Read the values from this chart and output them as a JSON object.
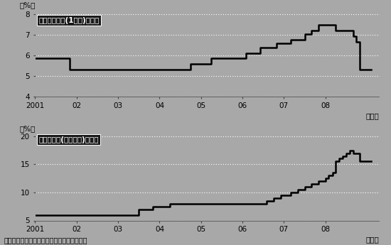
{
  "chart1_title": "貸出基準金利(1年物)の推移",
  "chart2_title": "預金準備率(大手銀行)の推移",
  "footnote": "（出所）中国人民銀行データを基に筆者作成",
  "chart1_ylabel": "（%）",
  "chart2_ylabel": "（%）",
  "chart1_ylim": [
    4,
    8.2
  ],
  "chart2_ylim": [
    5,
    20.5
  ],
  "chart1_yticks": [
    4,
    5,
    6,
    7,
    8
  ],
  "chart2_yticks": [
    5,
    10,
    15,
    20
  ],
  "xlim": [
    2001,
    2009.3
  ],
  "xtick_positions": [
    2001,
    2002,
    2003,
    2004,
    2005,
    2006,
    2007,
    2008
  ],
  "xtick_labels": [
    "2001",
    "02",
    "03",
    "04",
    "05",
    "06",
    "07",
    "08"
  ],
  "xlabel_end": "（年）",
  "bg_color": "#a8a8a8",
  "line_color": "#000000",
  "line_width": 1.8,
  "title_box_color": "#1a1a1a",
  "chart1_data_x": [
    2001.0,
    2001.83,
    2001.83,
    2002.17,
    2002.17,
    2004.75,
    2004.75,
    2005.25,
    2005.25,
    2006.08,
    2006.08,
    2006.42,
    2006.42,
    2006.83,
    2006.83,
    2007.17,
    2007.17,
    2007.5,
    2007.5,
    2007.67,
    2007.67,
    2007.83,
    2007.83,
    2008.0,
    2008.0,
    2008.25,
    2008.25,
    2008.67,
    2008.67,
    2008.75,
    2008.75,
    2008.83,
    2008.83,
    2009.1
  ],
  "chart1_data_y": [
    5.85,
    5.85,
    5.31,
    5.31,
    5.31,
    5.31,
    5.58,
    5.58,
    5.85,
    5.85,
    6.12,
    6.12,
    6.39,
    6.39,
    6.57,
    6.57,
    6.75,
    6.75,
    7.02,
    7.02,
    7.2,
    7.2,
    7.47,
    7.47,
    7.47,
    7.47,
    7.2,
    7.2,
    6.93,
    6.93,
    6.66,
    6.66,
    5.31,
    5.31
  ],
  "chart2_data_x": [
    2001.0,
    2003.5,
    2003.5,
    2003.83,
    2003.83,
    2004.25,
    2004.25,
    2004.5,
    2004.5,
    2006.58,
    2006.58,
    2006.75,
    2006.75,
    2006.92,
    2006.92,
    2007.17,
    2007.17,
    2007.33,
    2007.33,
    2007.5,
    2007.5,
    2007.67,
    2007.67,
    2007.83,
    2007.83,
    2008.0,
    2008.0,
    2008.08,
    2008.08,
    2008.17,
    2008.17,
    2008.25,
    2008.25,
    2008.33,
    2008.33,
    2008.42,
    2008.42,
    2008.5,
    2008.5,
    2008.58,
    2008.58,
    2008.67,
    2008.67,
    2008.83,
    2008.83,
    2009.1
  ],
  "chart2_data_y": [
    6.0,
    6.0,
    7.0,
    7.0,
    7.5,
    7.5,
    8.0,
    8.0,
    8.0,
    8.0,
    8.5,
    8.5,
    9.0,
    9.0,
    9.5,
    9.5,
    10.0,
    10.0,
    10.5,
    10.5,
    11.0,
    11.0,
    11.5,
    11.5,
    12.0,
    12.0,
    12.5,
    12.5,
    13.0,
    13.0,
    13.5,
    13.5,
    15.5,
    15.5,
    16.0,
    16.0,
    16.5,
    16.5,
    17.0,
    17.0,
    17.5,
    17.5,
    17.0,
    17.0,
    15.5,
    15.5
  ]
}
